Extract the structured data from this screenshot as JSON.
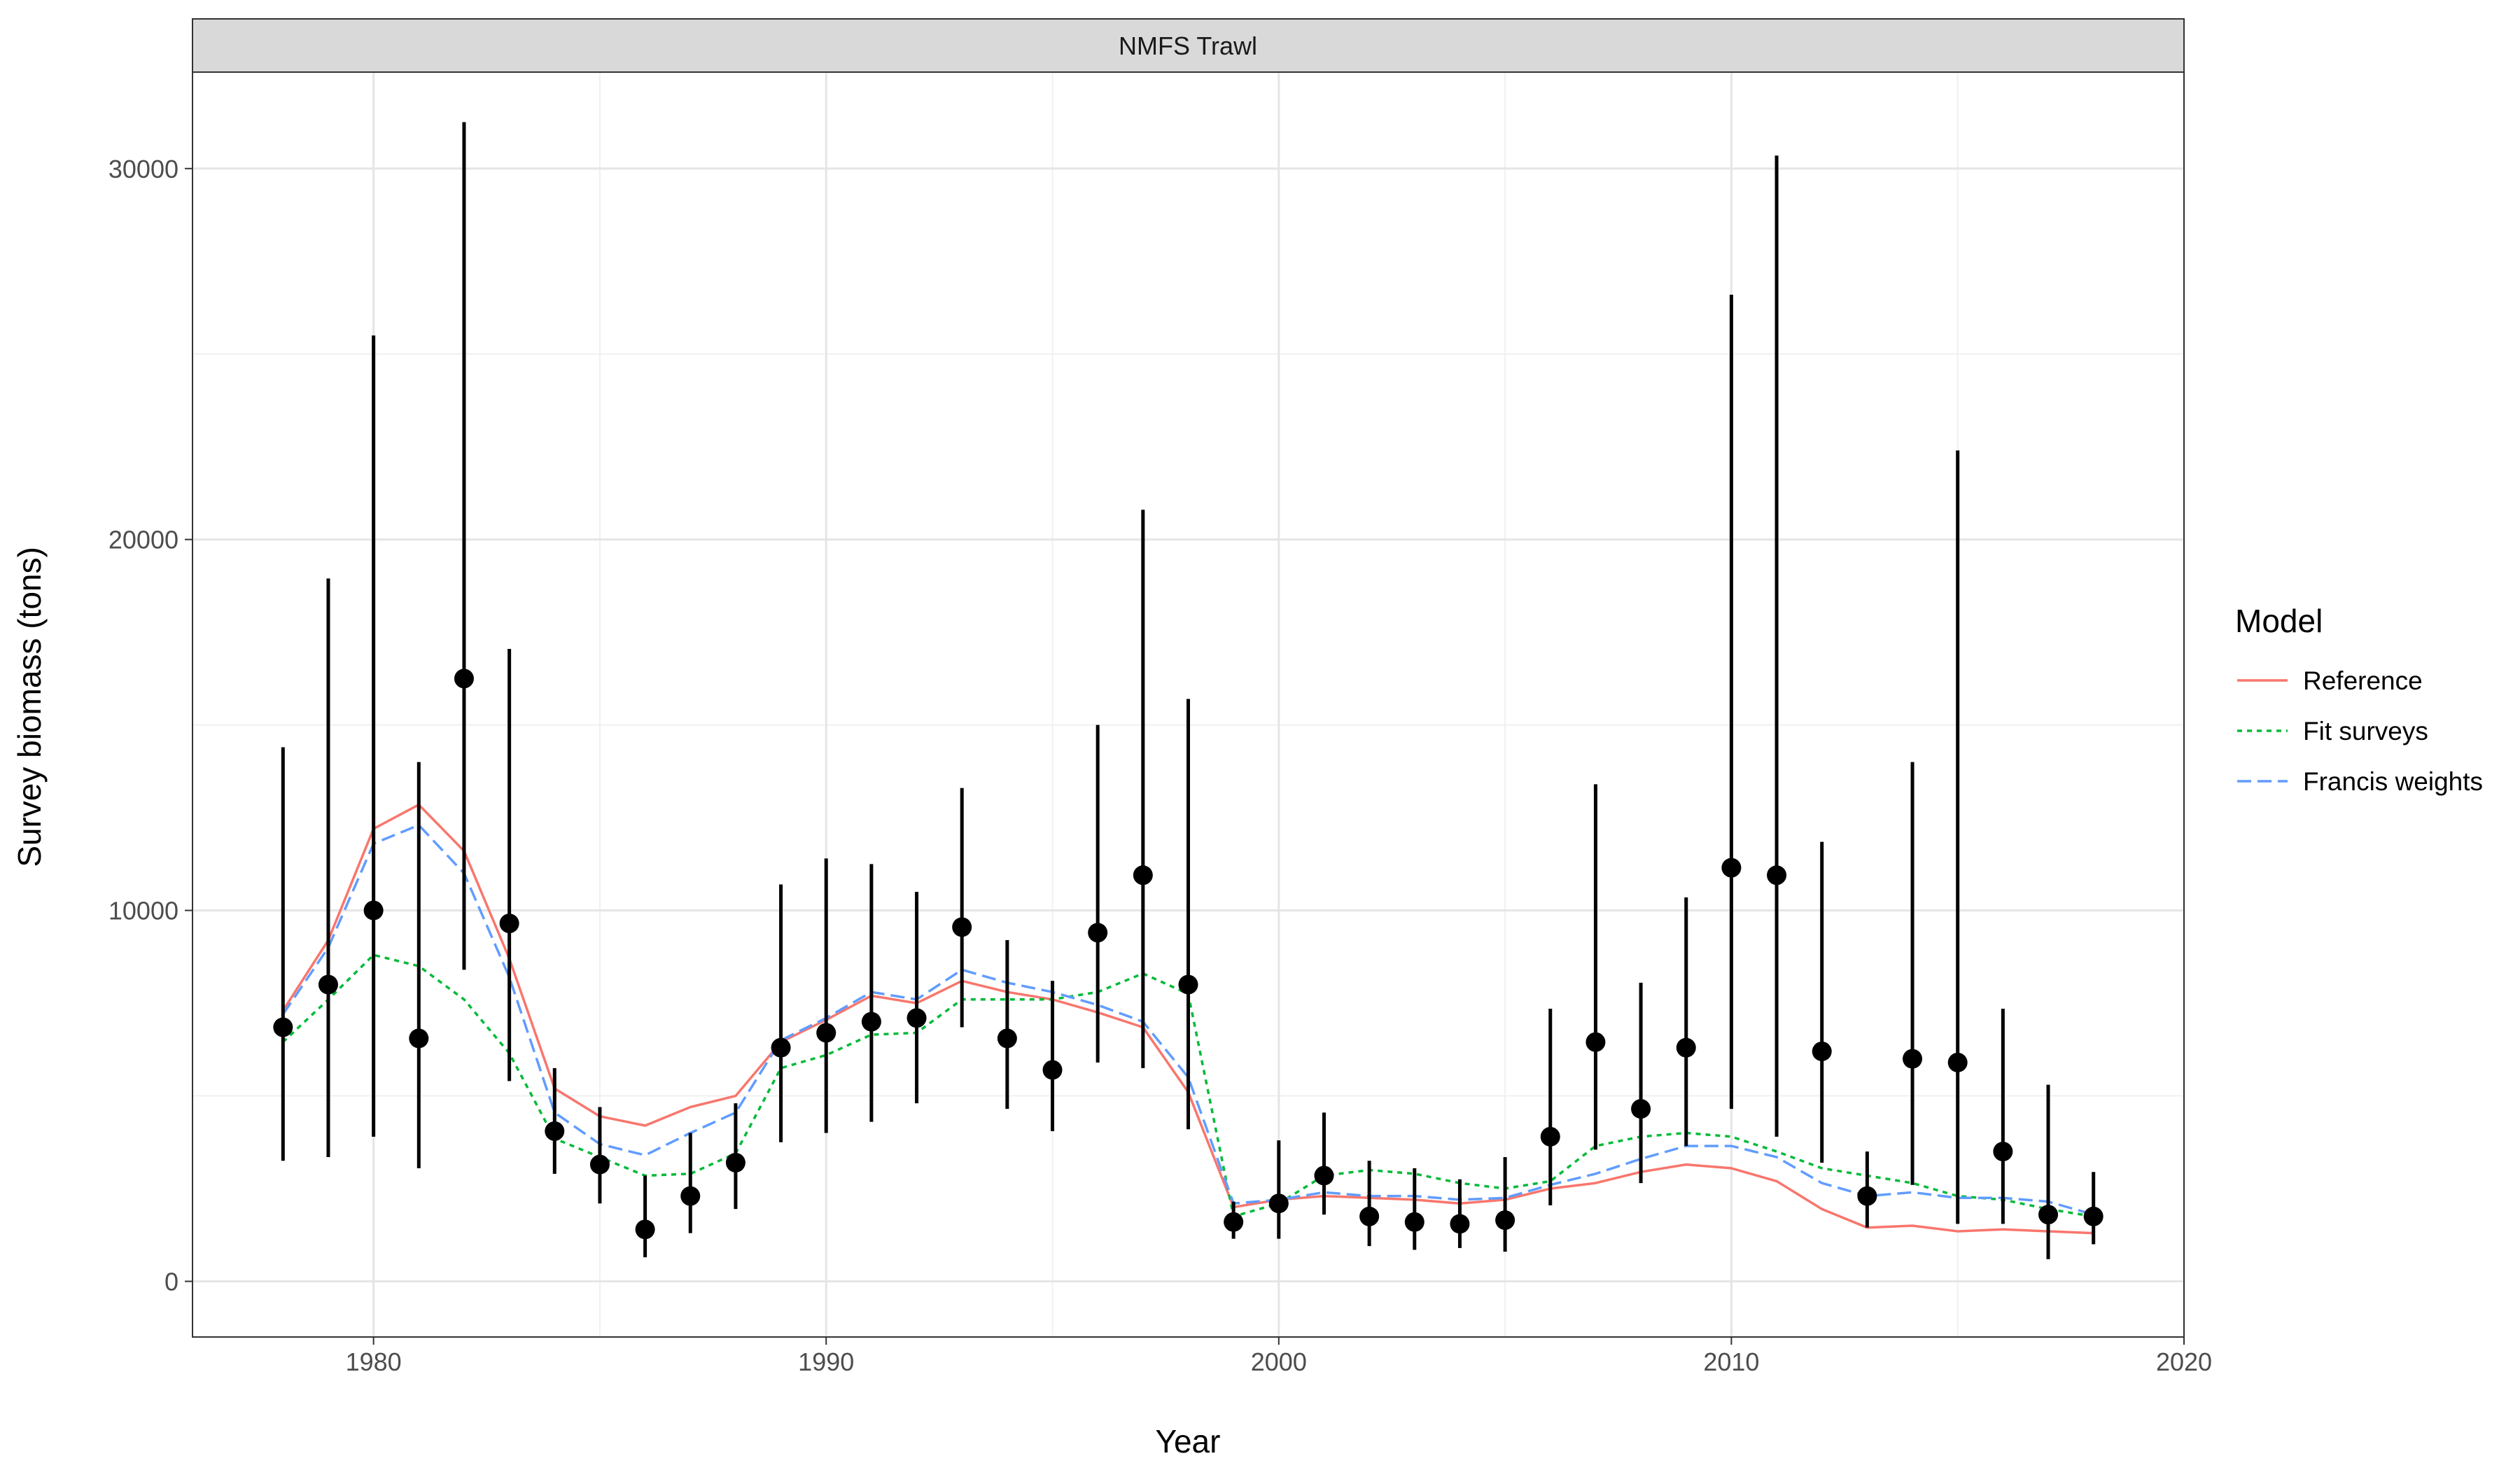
{
  "chart_data": {
    "type": "line",
    "facet_title": "NMFS Trawl",
    "xlabel": "Year",
    "ylabel": "Survey biomass (tons)",
    "xlim": [
      1976,
      2020
    ],
    "ylim": [
      -1500,
      32600
    ],
    "x_ticks": [
      1980,
      1990,
      2000,
      2010,
      2020
    ],
    "y_ticks": [
      0,
      10000,
      20000,
      30000
    ],
    "x_tick_labels": [
      "1980",
      "1990",
      "2000",
      "2010",
      "2020"
    ],
    "y_tick_labels": [
      "0",
      "10000",
      "20000",
      "30000"
    ],
    "grid": true,
    "legend": {
      "title": "Model",
      "placement": "right"
    },
    "observations": {
      "x": [
        1978,
        1979,
        1980,
        1981,
        1982,
        1983,
        1984,
        1985,
        1986,
        1987,
        1988,
        1989,
        1990,
        1991,
        1992,
        1993,
        1994,
        1995,
        1996,
        1997,
        1998,
        1999,
        2000,
        2001,
        2002,
        2003,
        2004,
        2005,
        2006,
        2007,
        2008,
        2009,
        2010,
        2011,
        2012,
        2013,
        2014,
        2015,
        2016,
        2017,
        2018
      ],
      "y": [
        6850,
        8000,
        10000,
        6550,
        16250,
        9650,
        4050,
        3150,
        1400,
        2300,
        3200,
        6300,
        6700,
        7000,
        7100,
        9550,
        6550,
        5700,
        9400,
        10950,
        8000,
        1600,
        2100,
        2850,
        1750,
        1600,
        1550,
        1650,
        3900,
        6450,
        4650,
        6300,
        11150,
        10950,
        6200,
        2300,
        6000,
        5900,
        3500,
        1800,
        1750
      ],
      "y_low": [
        3250,
        3350,
        3900,
        3050,
        8400,
        5400,
        2900,
        2100,
        650,
        1300,
        1950,
        3750,
        4000,
        4300,
        4800,
        6850,
        4650,
        4050,
        5900,
        5750,
        4100,
        1150,
        1150,
        1800,
        950,
        850,
        900,
        800,
        2050,
        3550,
        2650,
        3650,
        4650,
        3900,
        3200,
        1450,
        2600,
        1550,
        1550,
        600,
        1000
      ],
      "y_high": [
        14400,
        18950,
        25500,
        14000,
        31250,
        17050,
        5750,
        4700,
        2850,
        4000,
        4800,
        10700,
        11400,
        11250,
        10500,
        13300,
        9200,
        8100,
        15000,
        20800,
        15700,
        2150,
        3800,
        4550,
        3250,
        3050,
        2750,
        3350,
        7350,
        13400,
        8050,
        10350,
        26600,
        30350,
        11850,
        3500,
        14000,
        22400,
        7350,
        5300,
        2950
      ]
    },
    "series": [
      {
        "name": "Reference",
        "color": "#F8766D",
        "dash": "solid",
        "x": [
          1978,
          1979,
          1980,
          1981,
          1982,
          1983,
          1984,
          1985,
          1986,
          1987,
          1988,
          1989,
          1990,
          1991,
          1992,
          1993,
          1994,
          1995,
          1996,
          1997,
          1998,
          1999,
          2000,
          2001,
          2002,
          2003,
          2004,
          2005,
          2006,
          2007,
          2008,
          2009,
          2010,
          2011,
          2012,
          2013,
          2014,
          2015,
          2016,
          2017,
          2018
        ],
        "values": [
          7300,
          9200,
          12200,
          12850,
          11600,
          8700,
          5200,
          4450,
          4200,
          4700,
          5000,
          6450,
          7050,
          7700,
          7500,
          8100,
          7800,
          7600,
          7250,
          6850,
          5100,
          2000,
          2200,
          2300,
          2250,
          2200,
          2100,
          2200,
          2500,
          2650,
          2950,
          3150,
          3050,
          2700,
          1950,
          1450,
          1500,
          1350,
          1400,
          1350,
          1300
        ]
      },
      {
        "name": "Fit surveys",
        "color": "#00BA38",
        "dash": "dotted",
        "x": [
          1978,
          1979,
          1980,
          1981,
          1982,
          1983,
          1984,
          1985,
          1986,
          1987,
          1988,
          1989,
          1990,
          1991,
          1992,
          1993,
          1994,
          1995,
          1996,
          1997,
          1998,
          1999,
          2000,
          2001,
          2002,
          2003,
          2004,
          2005,
          2006,
          2007,
          2008,
          2009,
          2010,
          2011,
          2012,
          2013,
          2014,
          2015,
          2016,
          2017,
          2018
        ],
        "values": [
          6450,
          7600,
          8800,
          8500,
          7600,
          6150,
          3850,
          3350,
          2850,
          2900,
          3450,
          5750,
          6100,
          6650,
          6700,
          7600,
          7600,
          7600,
          7800,
          8300,
          7750,
          1750,
          2100,
          2850,
          3000,
          2900,
          2650,
          2500,
          2700,
          3650,
          3900,
          4000,
          3900,
          3500,
          3050,
          2850,
          2650,
          2300,
          2200,
          1950,
          1750
        ]
      },
      {
        "name": "Francis weights",
        "color": "#619CFF",
        "dash": "dashed",
        "x": [
          1978,
          1979,
          1980,
          1981,
          1982,
          1983,
          1984,
          1985,
          1986,
          1987,
          1988,
          1989,
          1990,
          1991,
          1992,
          1993,
          1994,
          1995,
          1996,
          1997,
          1998,
          1999,
          2000,
          2001,
          2002,
          2003,
          2004,
          2005,
          2006,
          2007,
          2008,
          2009,
          2010,
          2011,
          2012,
          2013,
          2014,
          2015,
          2016,
          2017,
          2018
        ],
        "values": [
          7200,
          9000,
          11800,
          12300,
          11000,
          8200,
          4550,
          3700,
          3400,
          4000,
          4550,
          6500,
          7100,
          7800,
          7600,
          8400,
          8050,
          7800,
          7450,
          7000,
          5500,
          2100,
          2200,
          2400,
          2300,
          2300,
          2200,
          2250,
          2600,
          2900,
          3300,
          3650,
          3650,
          3350,
          2650,
          2300,
          2400,
          2250,
          2250,
          2150,
          1800
        ]
      }
    ]
  }
}
